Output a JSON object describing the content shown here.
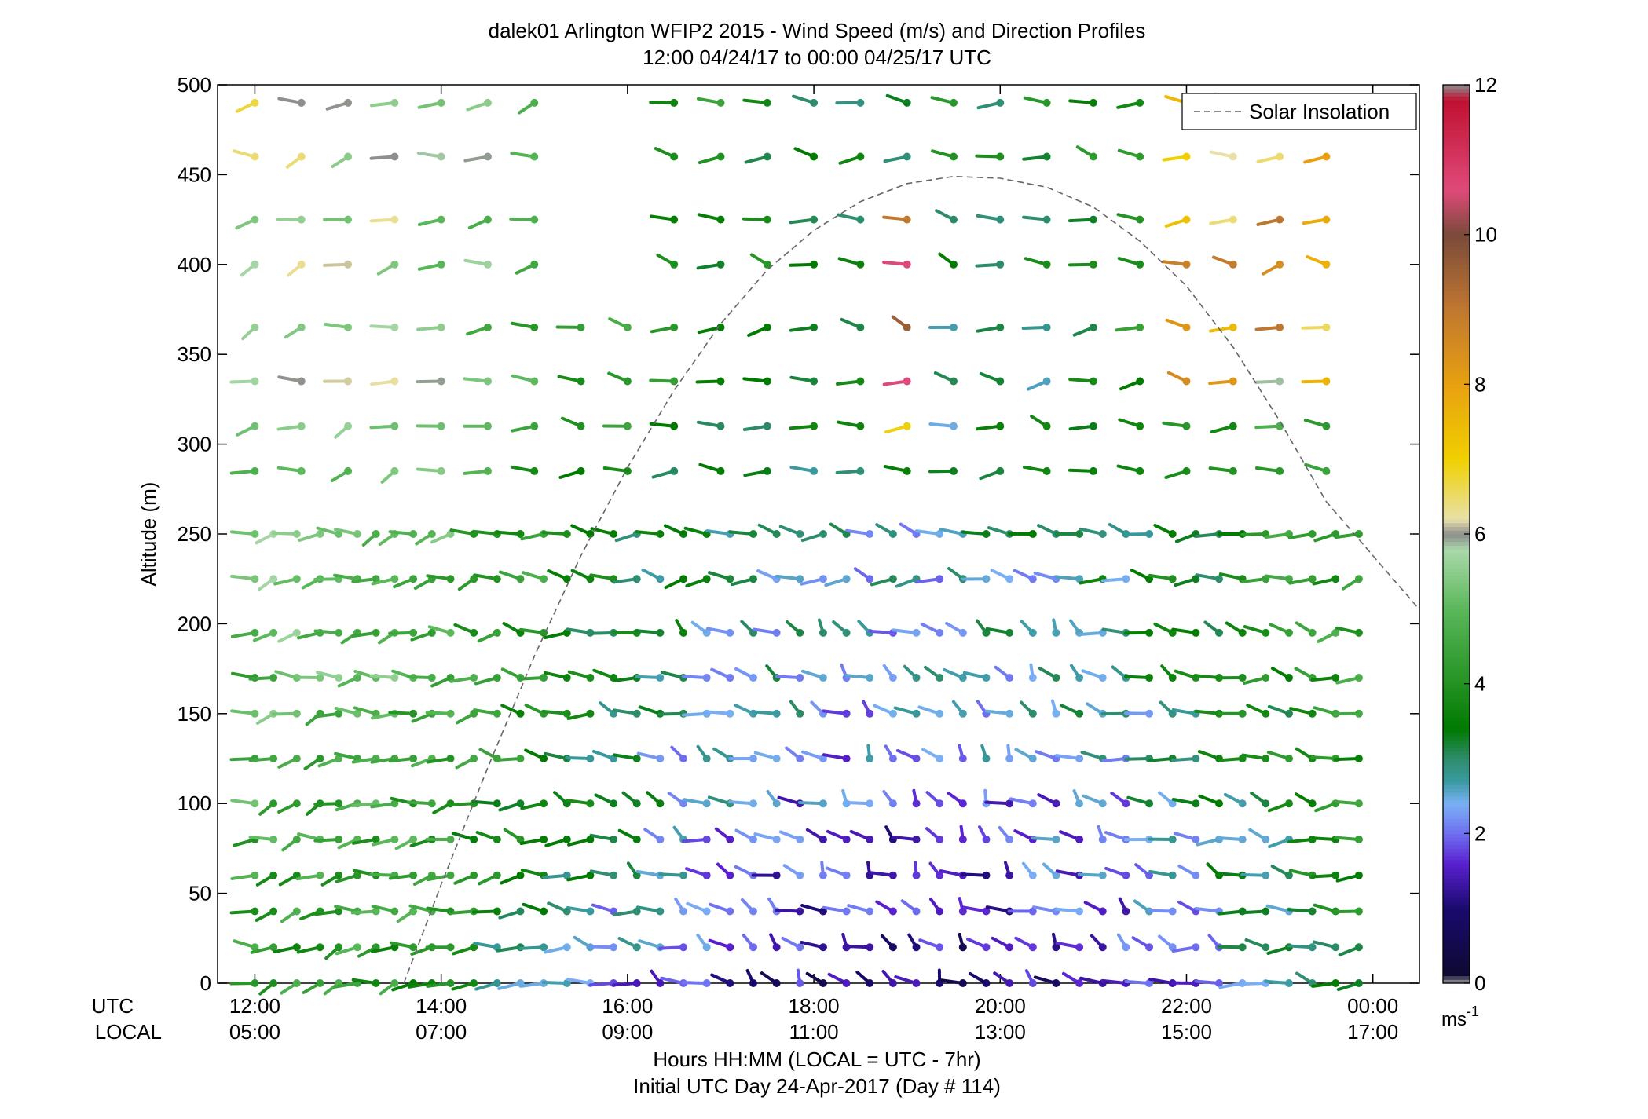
{
  "chart_data": {
    "type": "scatter",
    "title": "dalek01 Arlington WFIP2 2015 - Wind Speed (m/s) and Direction Profiles",
    "subtitle": "12:00 04/24/17 to 00:00 04/25/17  UTC",
    "ylabel": "Altitude (m)",
    "ylim": [
      0,
      500
    ],
    "yticks": [
      "0",
      "50",
      "100",
      "150",
      "200",
      "250",
      "300",
      "350",
      "400",
      "450",
      "500"
    ],
    "x_row_labels": {
      "utc": "UTC",
      "local": "LOCAL"
    },
    "x_utc_ticks": [
      "12:00",
      "14:00",
      "16:00",
      "18:00",
      "20:00",
      "22:00",
      "00:00"
    ],
    "x_local_ticks": [
      "05:00",
      "07:00",
      "09:00",
      "11:00",
      "13:00",
      "15:00",
      "17:00"
    ],
    "xlabel": "Hours HH:MM  (LOCAL = UTC - 7hr)",
    "xlabel2": "Initial UTC Day 24-Apr-2017 (Day # 114)",
    "x_range_hours": [
      11.6,
      24.5
    ],
    "legend": {
      "entries": [
        "Solar Insolation"
      ],
      "placement": "top-right",
      "line_color": "#666666"
    },
    "colorbar": {
      "range": [
        0,
        12
      ],
      "ticks": [
        "0",
        "2",
        "4",
        "6",
        "8",
        "10",
        "12"
      ],
      "unit": "ms",
      "unit_exp": "-1",
      "stops": [
        {
          "v": 0.0,
          "color": "#9a9a9a"
        },
        {
          "v": 0.12,
          "color": "#0d0a33"
        },
        {
          "v": 1.0,
          "color": "#1a0a6e"
        },
        {
          "v": 1.6,
          "color": "#5a1fd0"
        },
        {
          "v": 2.0,
          "color": "#6f6ff0"
        },
        {
          "v": 2.4,
          "color": "#7ab0f5"
        },
        {
          "v": 2.7,
          "color": "#3a9aa0"
        },
        {
          "v": 3.0,
          "color": "#2e8c6c"
        },
        {
          "v": 3.4,
          "color": "#007a00"
        },
        {
          "v": 4.2,
          "color": "#2e9a2e"
        },
        {
          "v": 5.0,
          "color": "#5ab85a"
        },
        {
          "v": 5.8,
          "color": "#aad8aa"
        },
        {
          "v": 6.0,
          "color": "#8c8c8c"
        },
        {
          "v": 6.2,
          "color": "#e8e0a8"
        },
        {
          "v": 7.0,
          "color": "#f0d000"
        },
        {
          "v": 8.0,
          "color": "#e8a010"
        },
        {
          "v": 9.0,
          "color": "#c07830"
        },
        {
          "v": 10.0,
          "color": "#7a4a3a"
        },
        {
          "v": 10.6,
          "color": "#e04a7a"
        },
        {
          "v": 11.8,
          "color": "#c01030"
        },
        {
          "v": 12.0,
          "color": "#8c8c8c"
        }
      ]
    },
    "solar_insolation": {
      "x_hours": [
        13.6,
        14.0,
        14.5,
        15.0,
        15.5,
        16.0,
        16.5,
        17.0,
        17.5,
        18.0,
        18.5,
        19.0,
        19.5,
        20.0,
        20.5,
        21.0,
        21.5,
        22.0,
        22.5,
        23.0,
        23.5,
        24.0,
        24.5
      ],
      "y_m": [
        0,
        55,
        120,
        182,
        238,
        287,
        330,
        367,
        397,
        419,
        435,
        445,
        449,
        448,
        443,
        432,
        413,
        388,
        354,
        313,
        268,
        238,
        208
      ]
    },
    "wind_barbs": {
      "description_units": "time in UTC hours, altitude in m, speed in m/s, direction in degrees (from)",
      "times_hours": [
        12.0,
        12.2,
        12.45,
        12.7,
        12.9,
        13.1,
        13.3,
        13.5,
        13.7,
        13.9,
        14.1,
        14.35,
        14.6,
        14.85,
        15.1,
        15.35,
        15.6,
        15.85,
        16.1,
        16.35,
        16.6,
        16.85,
        17.1,
        17.35,
        17.6,
        17.85,
        18.1,
        18.35,
        18.6,
        18.85,
        19.1,
        19.35,
        19.6,
        19.85,
        20.1,
        20.35,
        20.6,
        20.85,
        21.1,
        21.35,
        21.6,
        21.85,
        22.1,
        22.35,
        22.6,
        22.85,
        23.1,
        23.35,
        23.6,
        23.85
      ],
      "altitudes_m": [
        0,
        20,
        40,
        60,
        80,
        100,
        125,
        150,
        170,
        195,
        225,
        250,
        285,
        310,
        335,
        365,
        400,
        425,
        460,
        490
      ],
      "profile_times_hours_upper": [
        12.0,
        12.5,
        13.0,
        13.5,
        14.0,
        14.5,
        15.0,
        15.5,
        16.0,
        16.5,
        17.0,
        17.5,
        18.0,
        18.5,
        19.0,
        19.5,
        20.0,
        20.5,
        21.0,
        21.5,
        22.0,
        22.5,
        23.0,
        23.5
      ]
    }
  }
}
